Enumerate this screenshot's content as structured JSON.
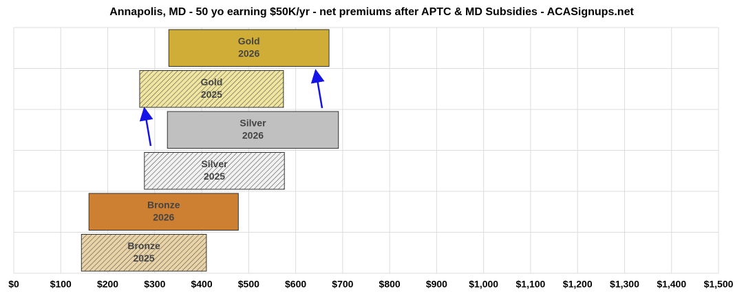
{
  "chart_data": {
    "type": "floating-bar",
    "title": "Annapolis, MD - 50 yo earning $50K/yr - net premiums after APTC & MD Subsidies - ACASignups.net",
    "bars": [
      {
        "name": "Gold",
        "year": "2026",
        "start": 330,
        "end": 671,
        "color": "#cfad37",
        "hatch": false
      },
      {
        "name": "Gold",
        "year": "2025",
        "start": 268,
        "end": 574,
        "color": "#f0e6a0",
        "hatch": true
      },
      {
        "name": "Silver",
        "year": "2026",
        "start": 327,
        "end": 691,
        "color": "#c0c0c0",
        "hatch": false
      },
      {
        "name": "Silver",
        "year": "2025",
        "start": 278,
        "end": 576,
        "color": "#f2f2f2",
        "hatch": true
      },
      {
        "name": "Bronze",
        "year": "2026",
        "start": 160,
        "end": 478,
        "color": "#cd7f32",
        "hatch": false
      },
      {
        "name": "Bronze",
        "year": "2025",
        "start": 144,
        "end": 410,
        "color": "#ead3a6",
        "hatch": true
      }
    ],
    "xlim": [
      0,
      1500
    ],
    "xticks": [
      {
        "value": 0,
        "label": "$0"
      },
      {
        "value": 100,
        "label": "$100"
      },
      {
        "value": 200,
        "label": "$200"
      },
      {
        "value": 300,
        "label": "$300"
      },
      {
        "value": 400,
        "label": "$400"
      },
      {
        "value": 500,
        "label": "$500"
      },
      {
        "value": 600,
        "label": "$600"
      },
      {
        "value": 700,
        "label": "$700"
      },
      {
        "value": 800,
        "label": "$800"
      },
      {
        "value": 900,
        "label": "$900"
      },
      {
        "value": 1000,
        "label": "$1,000"
      },
      {
        "value": 1100,
        "label": "$1,100"
      },
      {
        "value": 1200,
        "label": "$1,200"
      },
      {
        "value": 1300,
        "label": "$1,300"
      },
      {
        "value": 1400,
        "label": "$1,400"
      },
      {
        "value": 1500,
        "label": "$1,500"
      }
    ],
    "grid": true
  }
}
